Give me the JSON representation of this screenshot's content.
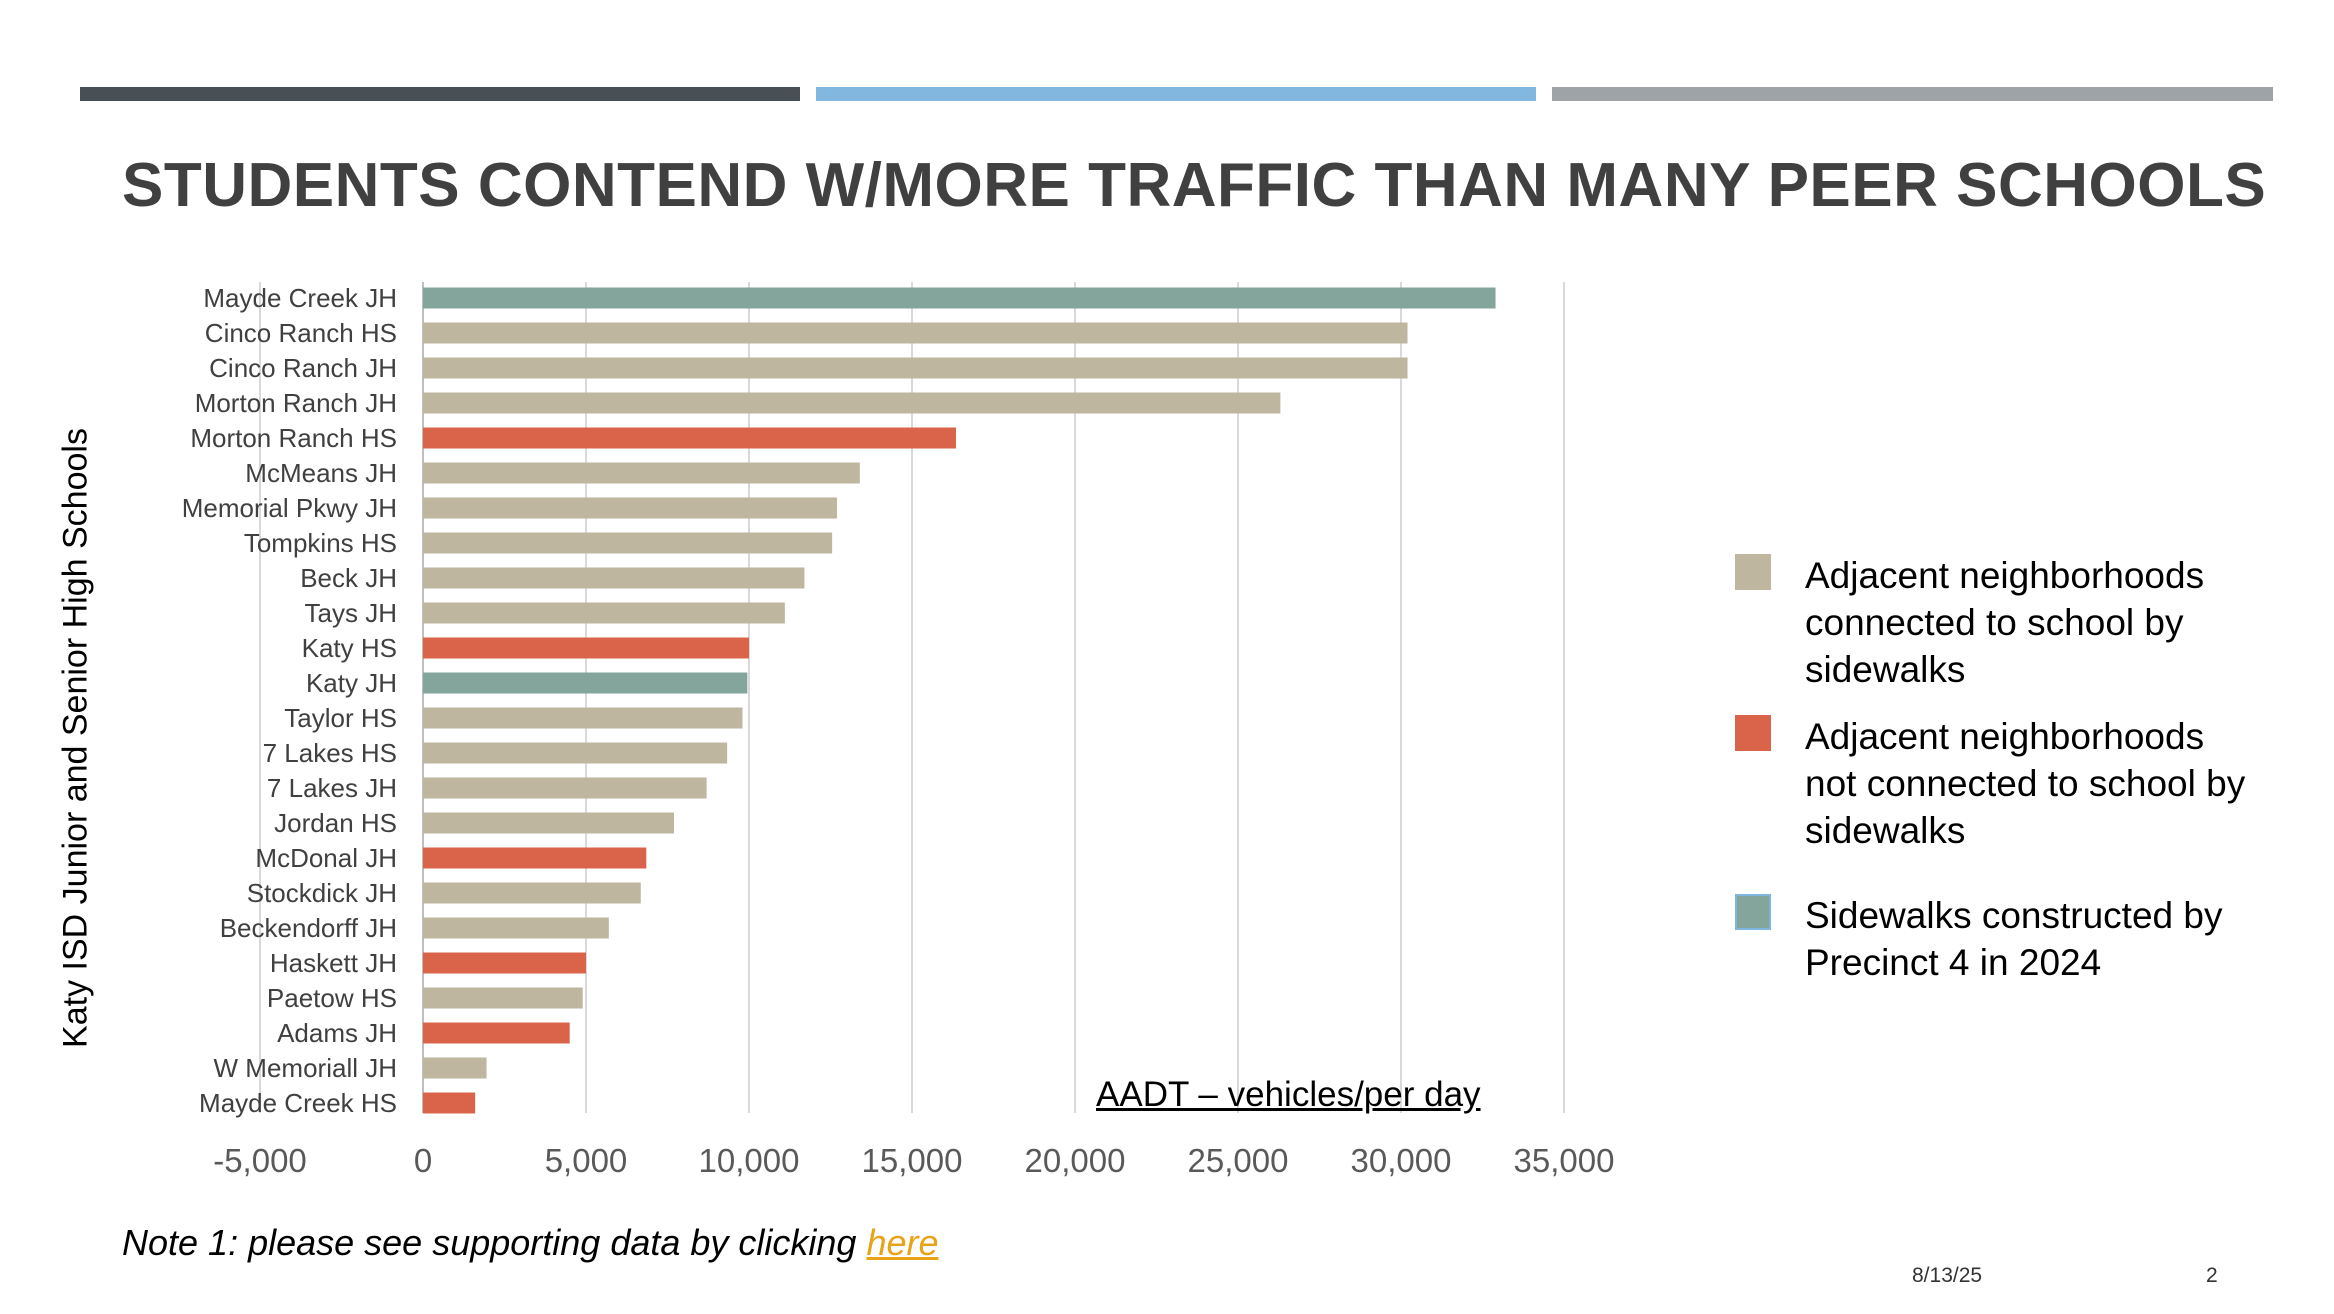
{
  "slide": {
    "title": "STUDENTS CONTEND W/MORE TRAFFIC THAN MANY PEER SCHOOLS",
    "note_prefix": "Note 1: please see supporting data by clicking ",
    "note_link": "here",
    "date": "8/13/25",
    "page": "2",
    "top_bar_colors": [
      "#485056",
      "#82b8e0",
      "#9ea3a8"
    ]
  },
  "chart_data": {
    "type": "bar",
    "orientation": "horizontal",
    "title": "",
    "xlabel": "AADT – vehicles/per day",
    "ylabel": "Katy ISD Junior and Senior High Schools",
    "xlim": [
      -5000,
      37000
    ],
    "xticks": [
      -5000,
      0,
      5000,
      10000,
      15000,
      20000,
      25000,
      30000,
      35000
    ],
    "xtick_labels": [
      "-5,000",
      "0",
      "5,000",
      "10,000",
      "15,000",
      "20,000",
      "25,000",
      "30,000",
      "35,000"
    ],
    "grid": true,
    "categories": [
      "Mayde Creek JH",
      "Cinco Ranch HS",
      "Cinco Ranch JH",
      "Morton Ranch JH",
      "Morton Ranch HS",
      "McMeans JH",
      "Memorial Pkwy JH",
      "Tompkins HS",
      "Beck JH",
      "Tays JH",
      "Katy HS",
      "Katy JH",
      "Taylor HS",
      "7 Lakes HS",
      "7 Lakes JH",
      "Jordan HS",
      "McDonal JH",
      "Stockdick JH",
      "Beckendorff JH",
      "Haskett JH",
      "Paetow HS",
      "Adams JH",
      "W Memoriall JH",
      "Mayde Creek HS"
    ],
    "values": [
      32900,
      30200,
      30200,
      26300,
      16350,
      13400,
      12700,
      12550,
      11700,
      11100,
      10000,
      9950,
      9800,
      9330,
      8700,
      7700,
      6850,
      6680,
      5700,
      5000,
      4900,
      4500,
      1950,
      1600
    ],
    "groups": [
      2,
      0,
      0,
      0,
      1,
      0,
      0,
      0,
      0,
      0,
      1,
      2,
      0,
      0,
      0,
      0,
      1,
      0,
      0,
      1,
      0,
      1,
      0,
      1
    ],
    "legend": {
      "placement": "right",
      "items": [
        {
          "label": "Adjacent neighborhoods connected to school by sidewalks",
          "color": "#bfb6a0"
        },
        {
          "label": "Adjacent neighborhoods not connected to school by sidewalks",
          "color": "#d9644a"
        },
        {
          "label": "Sidewalks constructed by Precinct 4 in 2024",
          "color": "#83a59c"
        }
      ]
    }
  }
}
